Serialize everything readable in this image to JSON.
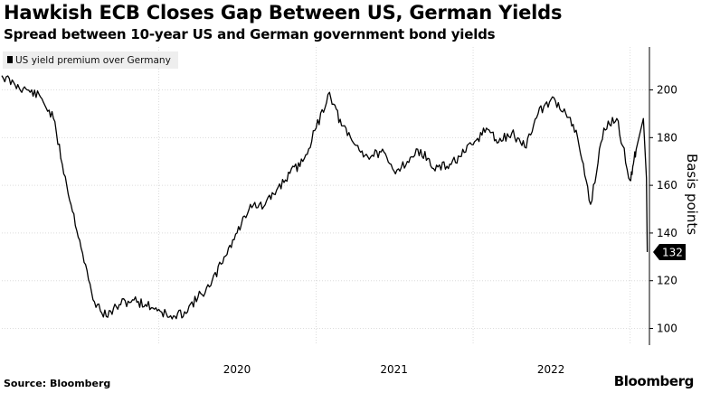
{
  "title": "Hawkish ECB Closes Gap Between US, German Yields",
  "subtitle": "Spread between 10-year US and German government bond yields",
  "source": "Source: Bloomberg",
  "brand": "Bloomberg",
  "chart_data": {
    "type": "line",
    "ylabel": "Basis points",
    "ylim": [
      93,
      218
    ],
    "yticks": [
      100,
      120,
      140,
      160,
      180,
      200
    ],
    "xticks": [
      {
        "label": "2020",
        "x": "2020-07-01"
      },
      {
        "label": "2021",
        "x": "2021-07-01"
      },
      {
        "label": "2022",
        "x": "2022-07-01"
      }
    ],
    "xlim": [
      "2019-01-01",
      "2023-02-15"
    ],
    "grid": true,
    "legend": {
      "position": "top-left",
      "entries": [
        "US yield premium over Germany"
      ]
    },
    "last_value_label": "132",
    "colors": {
      "line": "#000000",
      "grid": "#dcdcdc",
      "legend_bg": "#eeeeee"
    },
    "series": [
      {
        "name": "US yield premium over Germany",
        "x": [
          "2019-01-01",
          "2019-02-01",
          "2019-03-01",
          "2019-04-01",
          "2019-05-01",
          "2019-06-01",
          "2019-07-01",
          "2019-08-01",
          "2019-09-01",
          "2019-10-01",
          "2019-11-01",
          "2019-12-01",
          "2020-01-01",
          "2020-02-01",
          "2020-03-01",
          "2020-04-01",
          "2020-05-01",
          "2020-06-01",
          "2020-07-01",
          "2020-08-01",
          "2020-09-01",
          "2020-10-01",
          "2020-11-01",
          "2020-12-01",
          "2021-01-01",
          "2021-02-01",
          "2021-03-01",
          "2021-04-01",
          "2021-05-01",
          "2021-06-01",
          "2021-07-01",
          "2021-08-01",
          "2021-09-01",
          "2021-10-01",
          "2021-11-01",
          "2021-12-01",
          "2022-01-01",
          "2022-02-01",
          "2022-03-01",
          "2022-04-01",
          "2022-05-01",
          "2022-06-01",
          "2022-07-01",
          "2022-08-01",
          "2022-09-01",
          "2022-10-01",
          "2022-11-01",
          "2022-12-01",
          "2023-01-01",
          "2023-01-15"
        ],
        "y": [
          206,
          202,
          200,
          197,
          188,
          160,
          137,
          112,
          105,
          110,
          112,
          110,
          108,
          104,
          107,
          113,
          118,
          130,
          140,
          152,
          151,
          158,
          165,
          170,
          184,
          199,
          185,
          177,
          172,
          174,
          166,
          170,
          175,
          167,
          168,
          172,
          177,
          184,
          178,
          182,
          176,
          190,
          196,
          192,
          180,
          152,
          184,
          188,
          162,
          175
        ]
      },
      {
        "name": "",
        "x": [
          "2023-01-15",
          "2023-02-01",
          "2023-02-08",
          "2023-02-10"
        ],
        "y": [
          175,
          188,
          163,
          132
        ]
      }
    ]
  }
}
